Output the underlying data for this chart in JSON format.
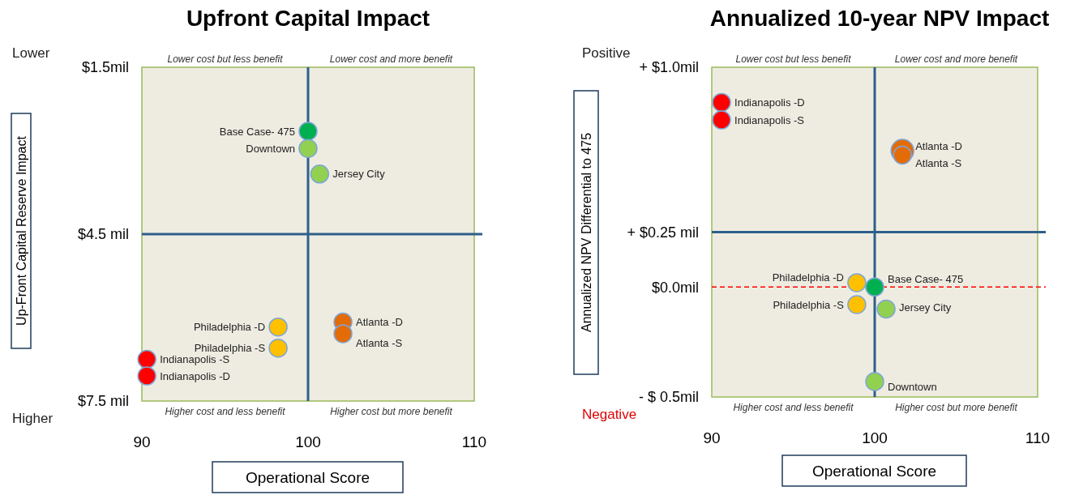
{
  "chart_data": [
    {
      "type": "scatter",
      "title": "Upfront Capital Impact",
      "xlabel": "Operational Score",
      "ylabel": "Up-Front Capital Reserve Impact",
      "marker": "circle",
      "xlim": [
        90,
        110
      ],
      "xticks": [
        90,
        100,
        110
      ],
      "ylim": [
        7.5,
        1.5
      ],
      "yticks": [
        {
          "value": 1.5,
          "label": "$1.5mil"
        },
        {
          "value": 4.5,
          "label": "$4.5 mil"
        },
        {
          "value": 7.5,
          "label": "$7.5 mil"
        }
      ],
      "annotations": [
        "Lower  cost but less benefit",
        "Lower  cost and more benefit",
        "Higher cost and less benefit",
        "Higher cost but more benefit",
        "Lower",
        "Higher"
      ],
      "ref_lines": [
        {
          "axis": "x",
          "value": 100,
          "color": "#2f5f8a",
          "line_style": "solid"
        },
        {
          "axis": "y",
          "value": 4.5,
          "color": "#2f5f8a",
          "line_style": "solid"
        }
      ],
      "series": [
        {
          "name": "Base Case- 475",
          "color": "#00b050",
          "x": [
            100
          ],
          "values": [
            2.65
          ]
        },
        {
          "name": "Downtown",
          "color": "#92d050",
          "x": [
            100
          ],
          "values": [
            2.96
          ]
        },
        {
          "name": "Jersey City",
          "color": "#92d050",
          "x": [
            100.7
          ],
          "values": [
            3.42
          ]
        },
        {
          "name": "Philadelphia -D",
          "color": "#ffc000",
          "x": [
            98.2
          ],
          "values": [
            6.17
          ]
        },
        {
          "name": "Philadelphia -S",
          "color": "#ffc000",
          "x": [
            98.2
          ],
          "values": [
            6.55
          ]
        },
        {
          "name": "Atlanta -D",
          "color": "#e36c09",
          "x": [
            102.1
          ],
          "values": [
            6.08
          ]
        },
        {
          "name": "Atlanta -S",
          "color": "#e36c09",
          "x": [
            102.1
          ],
          "values": [
            6.29
          ]
        },
        {
          "name": "Indianapolis -S",
          "color": "#ff0000",
          "x": [
            90.3
          ],
          "values": [
            6.75
          ]
        },
        {
          "name": "Indianapolis -D",
          "color": "#ff0000",
          "x": [
            90.3
          ],
          "values": [
            7.05
          ]
        }
      ]
    },
    {
      "type": "scatter",
      "title": "Annualized 10-year NPV Impact",
      "xlabel": "Operational Score",
      "ylabel": "Annualized NPV Differential to 475",
      "marker": "circle",
      "xlim": [
        90,
        110
      ],
      "xticks": [
        90,
        100,
        110
      ],
      "ylim": [
        -0.5,
        1.0
      ],
      "yticks": [
        {
          "value": 1.0,
          "label": "+ $1.0mil"
        },
        {
          "value": 0.25,
          "label": "+ $0.25 mil"
        },
        {
          "value": 0,
          "label": "$0.0mil"
        },
        {
          "value": -0.5,
          "label": "- $ 0.5mil"
        }
      ],
      "annotations": [
        "Lower  cost but less benefit",
        "Lower  cost and more benefit",
        "Higher cost and less benefit",
        "Higher cost but more benefit",
        "Positive",
        "Negative"
      ],
      "ref_lines": [
        {
          "axis": "x",
          "value": 100,
          "color": "#2f5f8a",
          "line_style": "solid"
        },
        {
          "axis": "y",
          "value": 0.25,
          "color": "#2f5f8a",
          "line_style": "solid"
        },
        {
          "axis": "y",
          "value": 0,
          "color": "#ff0000",
          "line_style": "dashed"
        }
      ],
      "series": [
        {
          "name": "Indianapolis -D",
          "color": "#ff0000",
          "x": [
            90.6
          ],
          "values": [
            0.84
          ]
        },
        {
          "name": "Indianapolis -S",
          "color": "#ff0000",
          "x": [
            90.6
          ],
          "values": [
            0.76
          ]
        },
        {
          "name": "Atlanta -D",
          "color": "#e36c09",
          "x": [
            101.7
          ],
          "values": [
            0.62
          ]
        },
        {
          "name": "Atlanta -S",
          "color": "#e36c09",
          "x": [
            101.7
          ],
          "values": [
            0.6
          ]
        },
        {
          "name": "Philadelphia -D",
          "color": "#ffc000",
          "x": [
            98.9
          ],
          "values": [
            0.02
          ]
        },
        {
          "name": "Base Case- 475",
          "color": "#00b050",
          "x": [
            100
          ],
          "values": [
            0
          ]
        },
        {
          "name": "Philadelphia -S",
          "color": "#ffc000",
          "x": [
            98.9
          ],
          "values": [
            -0.08
          ]
        },
        {
          "name": "Jersey City",
          "color": "#92d050",
          "x": [
            100.7
          ],
          "values": [
            -0.1
          ]
        },
        {
          "name": "Downtown",
          "color": "#92d050",
          "x": [
            100
          ],
          "values": [
            -0.43
          ]
        }
      ]
    }
  ]
}
